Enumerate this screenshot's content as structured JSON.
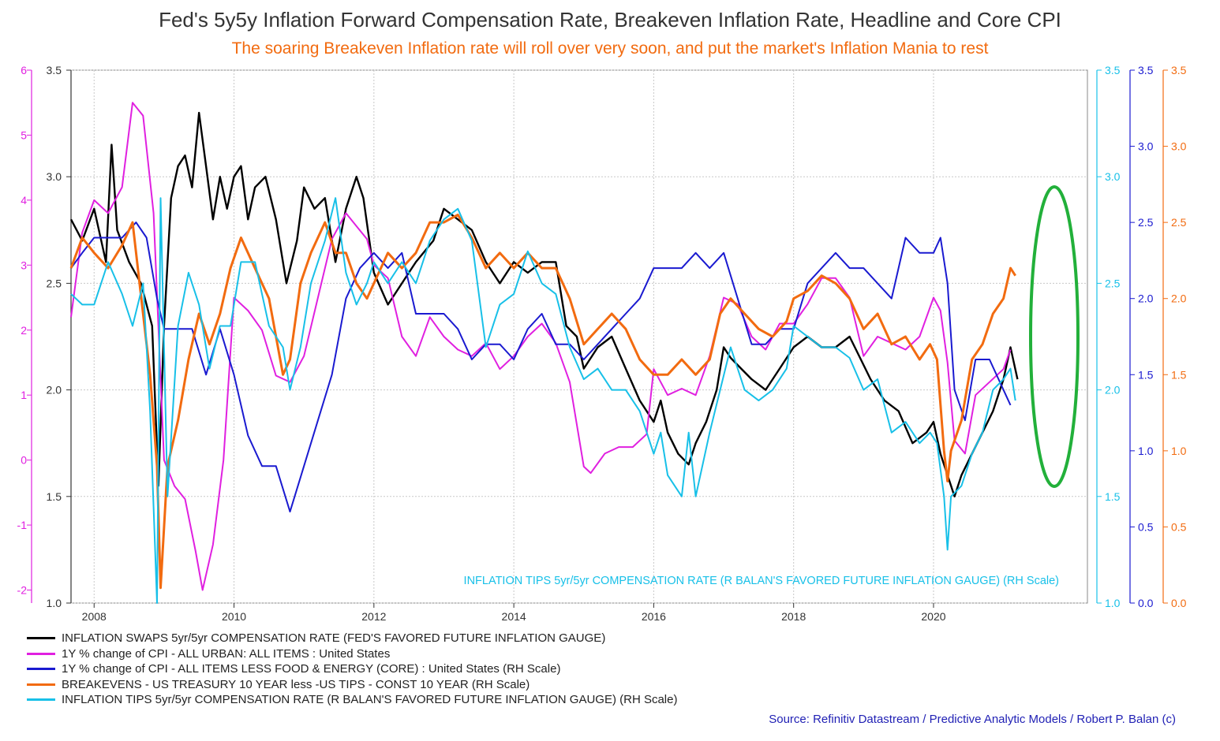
{
  "title": "Fed's 5y5y Inflation Forward Compensation Rate, Breakeven Inflation Rate, Headline and Core CPI",
  "subtitle": "The soaring Breakeven Inflation rate will roll over very soon, and put the market's Inflation Mania to rest",
  "annotation": "INFLATION TIPS 5yr/5yr COMPENSATION RATE (R BALAN'S FAVORED FUTURE INFLATION GAUGE) (RH Scale)",
  "source": "Source: Refinitiv Datastream / Predictive Analytic Models / Robert P. Balan (c)",
  "chart_data": {
    "type": "line",
    "xlim": [
      2007.67,
      2022.2
    ],
    "x_ticks": [
      2008,
      2010,
      2012,
      2014,
      2016,
      2018,
      2020
    ],
    "grid": true,
    "legend_position": "bottom",
    "axes": {
      "left_primary": {
        "color": "#333333",
        "range": [
          1.0,
          3.5
        ],
        "ticks": [
          "1.0",
          "1.5",
          "2.0",
          "2.5",
          "3.0",
          "3.5"
        ]
      },
      "left_secondary": {
        "color": "#e020e0",
        "range": [
          -2.2,
          6
        ],
        "ticks": [
          "-2",
          "-1",
          "0",
          "1",
          "2",
          "3",
          "4",
          "5",
          "6"
        ]
      },
      "right_tips": {
        "color": "#18c0e8",
        "range": [
          1.0,
          3.5
        ],
        "ticks": [
          "1.0",
          "1.5",
          "2.0",
          "2.5",
          "3.0",
          "3.5"
        ]
      },
      "right_core": {
        "color": "#1a1ad0",
        "range": [
          0.0,
          3.5
        ],
        "ticks": [
          "0.0",
          "0.5",
          "1.0",
          "1.5",
          "2.0",
          "2.5",
          "3.0",
          "3.5"
        ]
      },
      "right_breakeven": {
        "color": "#f26b10",
        "range": [
          0.0,
          3.5
        ],
        "ticks": [
          "0.0",
          "0.5",
          "1.0",
          "1.5",
          "2.0",
          "2.5",
          "3.0",
          "3.5"
        ]
      }
    },
    "series": [
      {
        "name": "INFLATION SWAPS 5yr/5yr COMPENSATION RATE (FED'S FAVORED FUTURE INFLATION GAUGE)",
        "axis": "left_primary",
        "color": "#000000",
        "width": 2.4,
        "x": [
          2007.67,
          2007.83,
          2008.0,
          2008.17,
          2008.25,
          2008.33,
          2008.5,
          2008.67,
          2008.83,
          2008.92,
          2009.0,
          2009.1,
          2009.2,
          2009.3,
          2009.4,
          2009.5,
          2009.6,
          2009.7,
          2009.8,
          2009.9,
          2010.0,
          2010.1,
          2010.2,
          2010.3,
          2010.45,
          2010.6,
          2010.75,
          2010.9,
          2011.0,
          2011.15,
          2011.3,
          2011.45,
          2011.6,
          2011.75,
          2011.85,
          2012.0,
          2012.2,
          2012.4,
          2012.6,
          2012.85,
          2013.0,
          2013.2,
          2013.4,
          2013.6,
          2013.8,
          2014.0,
          2014.2,
          2014.4,
          2014.6,
          2014.75,
          2014.9,
          2015.0,
          2015.2,
          2015.4,
          2015.6,
          2015.8,
          2016.0,
          2016.1,
          2016.2,
          2016.35,
          2016.5,
          2016.6,
          2016.75,
          2016.9,
          2017.0,
          2017.1,
          2017.25,
          2017.4,
          2017.6,
          2017.8,
          2018.0,
          2018.2,
          2018.4,
          2018.6,
          2018.8,
          2018.95,
          2019.1,
          2019.3,
          2019.5,
          2019.7,
          2019.9,
          2020.0,
          2020.1,
          2020.2,
          2020.3,
          2020.4,
          2020.55,
          2020.7,
          2020.85,
          2021.0,
          2021.1,
          2021.2
        ],
        "y": [
          2.8,
          2.7,
          2.85,
          2.6,
          3.15,
          2.75,
          2.6,
          2.5,
          2.3,
          1.55,
          2.3,
          2.9,
          3.05,
          3.1,
          2.95,
          3.3,
          3.05,
          2.8,
          3.0,
          2.85,
          3.0,
          3.05,
          2.8,
          2.95,
          3.0,
          2.8,
          2.5,
          2.7,
          2.95,
          2.85,
          2.9,
          2.6,
          2.85,
          3.0,
          2.9,
          2.55,
          2.4,
          2.5,
          2.6,
          2.7,
          2.85,
          2.8,
          2.75,
          2.6,
          2.5,
          2.6,
          2.55,
          2.6,
          2.6,
          2.3,
          2.25,
          2.1,
          2.2,
          2.25,
          2.1,
          1.95,
          1.85,
          1.95,
          1.8,
          1.7,
          1.65,
          1.75,
          1.85,
          2.0,
          2.2,
          2.15,
          2.1,
          2.05,
          2.0,
          2.1,
          2.2,
          2.25,
          2.2,
          2.2,
          2.25,
          2.15,
          2.05,
          1.95,
          1.9,
          1.75,
          1.8,
          1.85,
          1.7,
          1.6,
          1.5,
          1.6,
          1.7,
          1.8,
          1.9,
          2.05,
          2.2,
          2.05
        ]
      },
      {
        "name": "1Y % change of CPI - ALL URBAN: ALL ITEMS : United States",
        "axis": "left_secondary",
        "color": "#e020e0",
        "width": 2,
        "x": [
          2007.67,
          2007.83,
          2008.0,
          2008.2,
          2008.4,
          2008.55,
          2008.7,
          2008.85,
          2009.0,
          2009.15,
          2009.3,
          2009.45,
          2009.55,
          2009.7,
          2009.85,
          2010.0,
          2010.2,
          2010.4,
          2010.6,
          2010.8,
          2011.0,
          2011.2,
          2011.4,
          2011.6,
          2011.75,
          2011.9,
          2012.0,
          2012.2,
          2012.4,
          2012.6,
          2012.8,
          2013.0,
          2013.2,
          2013.4,
          2013.6,
          2013.8,
          2014.0,
          2014.2,
          2014.4,
          2014.6,
          2014.8,
          2015.0,
          2015.1,
          2015.3,
          2015.5,
          2015.7,
          2015.9,
          2016.0,
          2016.2,
          2016.4,
          2016.6,
          2016.8,
          2017.0,
          2017.2,
          2017.4,
          2017.6,
          2017.8,
          2018.0,
          2018.2,
          2018.4,
          2018.6,
          2018.8,
          2019.0,
          2019.2,
          2019.4,
          2019.6,
          2019.8,
          2020.0,
          2020.1,
          2020.2,
          2020.3,
          2020.45,
          2020.6,
          2020.8,
          2021.0,
          2021.1
        ],
        "y": [
          2.2,
          3.5,
          4.0,
          3.8,
          4.2,
          5.5,
          5.3,
          3.8,
          0.0,
          -0.4,
          -0.6,
          -1.4,
          -2.0,
          -1.3,
          0.0,
          2.5,
          2.3,
          2.0,
          1.3,
          1.2,
          1.6,
          2.5,
          3.4,
          3.8,
          3.6,
          3.4,
          3.0,
          2.8,
          1.9,
          1.6,
          2.2,
          1.9,
          1.7,
          1.6,
          1.8,
          1.4,
          1.6,
          1.9,
          2.1,
          1.8,
          1.2,
          -0.1,
          -0.2,
          0.1,
          0.2,
          0.2,
          0.4,
          1.4,
          1.0,
          1.1,
          1.0,
          1.6,
          2.5,
          2.4,
          1.9,
          1.7,
          2.1,
          2.1,
          2.4,
          2.8,
          2.8,
          2.5,
          1.6,
          1.9,
          1.8,
          1.7,
          1.9,
          2.5,
          2.3,
          1.5,
          0.3,
          0.1,
          1.0,
          1.2,
          1.4,
          1.7
        ]
      },
      {
        "name": "1Y % change of CPI - ALL ITEMS LESS FOOD & ENERGY (CORE) : United States (RH Scale)",
        "axis": "right_core",
        "color": "#1a1ad0",
        "width": 2,
        "x": [
          2007.67,
          2007.83,
          2008.0,
          2008.2,
          2008.4,
          2008.6,
          2008.75,
          2008.9,
          2009.0,
          2009.2,
          2009.4,
          2009.6,
          2009.8,
          2010.0,
          2010.2,
          2010.4,
          2010.6,
          2010.8,
          2011.0,
          2011.2,
          2011.4,
          2011.6,
          2011.8,
          2012.0,
          2012.2,
          2012.4,
          2012.6,
          2012.8,
          2013.0,
          2013.2,
          2013.4,
          2013.6,
          2013.8,
          2014.0,
          2014.2,
          2014.4,
          2014.6,
          2014.8,
          2015.0,
          2015.2,
          2015.4,
          2015.6,
          2015.8,
          2016.0,
          2016.2,
          2016.4,
          2016.6,
          2016.8,
          2017.0,
          2017.2,
          2017.4,
          2017.6,
          2017.8,
          2018.0,
          2018.2,
          2018.4,
          2018.6,
          2018.8,
          2019.0,
          2019.2,
          2019.4,
          2019.6,
          2019.8,
          2020.0,
          2020.1,
          2020.2,
          2020.3,
          2020.45,
          2020.6,
          2020.8,
          2021.0,
          2021.1
        ],
        "y": [
          2.2,
          2.3,
          2.4,
          2.4,
          2.4,
          2.5,
          2.4,
          2.0,
          1.8,
          1.8,
          1.8,
          1.5,
          1.8,
          1.5,
          1.1,
          0.9,
          0.9,
          0.6,
          0.9,
          1.2,
          1.5,
          2.0,
          2.2,
          2.3,
          2.2,
          2.3,
          1.9,
          1.9,
          1.9,
          1.8,
          1.6,
          1.7,
          1.7,
          1.6,
          1.8,
          1.9,
          1.7,
          1.7,
          1.6,
          1.7,
          1.8,
          1.9,
          2.0,
          2.2,
          2.2,
          2.2,
          2.3,
          2.2,
          2.3,
          2.0,
          1.7,
          1.7,
          1.8,
          1.8,
          2.1,
          2.2,
          2.3,
          2.2,
          2.2,
          2.1,
          2.0,
          2.4,
          2.3,
          2.3,
          2.4,
          2.1,
          1.4,
          1.2,
          1.6,
          1.6,
          1.4,
          1.3
        ]
      },
      {
        "name": "BREAKEVENS - US TREASURY 10 YEAR less -US TIPS - CONST 10 YEAR (RH Scale)",
        "axis": "right_breakeven",
        "color": "#f26b10",
        "width": 3,
        "x": [
          2007.67,
          2007.83,
          2008.0,
          2008.2,
          2008.4,
          2008.55,
          2008.7,
          2008.8,
          2008.9,
          2008.95,
          2009.05,
          2009.2,
          2009.35,
          2009.5,
          2009.65,
          2009.8,
          2009.95,
          2010.1,
          2010.3,
          2010.5,
          2010.7,
          2010.8,
          2010.95,
          2011.1,
          2011.3,
          2011.45,
          2011.6,
          2011.75,
          2011.9,
          2012.0,
          2012.2,
          2012.4,
          2012.6,
          2012.8,
          2013.0,
          2013.2,
          2013.4,
          2013.6,
          2013.8,
          2014.0,
          2014.2,
          2014.4,
          2014.6,
          2014.8,
          2015.0,
          2015.2,
          2015.4,
          2015.6,
          2015.8,
          2016.0,
          2016.2,
          2016.4,
          2016.6,
          2016.8,
          2016.95,
          2017.1,
          2017.3,
          2017.5,
          2017.7,
          2017.9,
          2018.0,
          2018.2,
          2018.4,
          2018.6,
          2018.8,
          2019.0,
          2019.2,
          2019.4,
          2019.6,
          2019.8,
          2019.95,
          2020.05,
          2020.15,
          2020.2,
          2020.25,
          2020.4,
          2020.55,
          2020.7,
          2020.85,
          2021.0,
          2021.1,
          2021.17
        ],
        "y": [
          2.2,
          2.4,
          2.3,
          2.2,
          2.35,
          2.5,
          1.9,
          1.5,
          0.9,
          0.1,
          0.9,
          1.2,
          1.6,
          1.9,
          1.7,
          1.9,
          2.2,
          2.4,
          2.2,
          2.0,
          1.5,
          1.6,
          2.1,
          2.3,
          2.5,
          2.3,
          2.3,
          2.1,
          2.0,
          2.1,
          2.3,
          2.2,
          2.3,
          2.5,
          2.5,
          2.55,
          2.4,
          2.2,
          2.3,
          2.2,
          2.3,
          2.2,
          2.2,
          2.0,
          1.7,
          1.8,
          1.9,
          1.8,
          1.6,
          1.5,
          1.5,
          1.6,
          1.5,
          1.6,
          1.9,
          2.0,
          1.9,
          1.8,
          1.75,
          1.85,
          2.0,
          2.05,
          2.15,
          2.1,
          2.0,
          1.8,
          1.9,
          1.7,
          1.75,
          1.6,
          1.7,
          1.6,
          1.0,
          0.8,
          1.0,
          1.2,
          1.6,
          1.7,
          1.9,
          2.0,
          2.2,
          2.15
        ]
      },
      {
        "name": "INFLATION TIPS 5yr/5yr COMPENSATION RATE (R BALAN'S FAVORED FUTURE INFLATION GAUGE) (RH Scale)",
        "axis": "right_tips",
        "color": "#18c0e8",
        "width": 2,
        "x": [
          2007.67,
          2007.83,
          2008.0,
          2008.2,
          2008.4,
          2008.55,
          2008.7,
          2008.8,
          2008.9,
          2008.95,
          2009.05,
          2009.2,
          2009.35,
          2009.5,
          2009.65,
          2009.8,
          2009.95,
          2010.1,
          2010.3,
          2010.5,
          2010.7,
          2010.8,
          2010.95,
          2011.1,
          2011.3,
          2011.45,
          2011.6,
          2011.75,
          2011.9,
          2012.0,
          2012.2,
          2012.4,
          2012.6,
          2012.8,
          2013.0,
          2013.2,
          2013.4,
          2013.6,
          2013.8,
          2014.0,
          2014.2,
          2014.4,
          2014.6,
          2014.8,
          2015.0,
          2015.2,
          2015.4,
          2015.6,
          2015.8,
          2016.0,
          2016.1,
          2016.2,
          2016.4,
          2016.5,
          2016.6,
          2016.8,
          2016.95,
          2017.1,
          2017.3,
          2017.5,
          2017.7,
          2017.9,
          2018.0,
          2018.2,
          2018.4,
          2018.6,
          2018.8,
          2019.0,
          2019.2,
          2019.4,
          2019.6,
          2019.8,
          2019.95,
          2020.05,
          2020.15,
          2020.2,
          2020.25,
          2020.4,
          2020.55,
          2020.7,
          2020.85,
          2021.0,
          2021.1,
          2021.17
        ],
        "y": [
          2.45,
          2.4,
          2.4,
          2.6,
          2.45,
          2.3,
          2.5,
          1.9,
          1.0,
          2.9,
          1.5,
          2.3,
          2.55,
          2.4,
          2.1,
          2.3,
          2.3,
          2.6,
          2.6,
          2.3,
          2.2,
          2.0,
          2.2,
          2.5,
          2.7,
          2.9,
          2.55,
          2.4,
          2.5,
          2.6,
          2.5,
          2.6,
          2.5,
          2.7,
          2.8,
          2.85,
          2.7,
          2.2,
          2.4,
          2.45,
          2.65,
          2.5,
          2.45,
          2.2,
          2.05,
          2.1,
          2.0,
          2.0,
          1.9,
          1.7,
          1.8,
          1.6,
          1.5,
          1.8,
          1.5,
          1.8,
          2.0,
          2.2,
          2.0,
          1.95,
          2.0,
          2.1,
          2.3,
          2.25,
          2.2,
          2.2,
          2.15,
          2.0,
          2.05,
          1.8,
          1.85,
          1.75,
          1.8,
          1.75,
          1.5,
          1.25,
          1.5,
          1.55,
          1.7,
          1.8,
          2.0,
          2.05,
          2.1,
          1.95
        ]
      }
    ]
  }
}
